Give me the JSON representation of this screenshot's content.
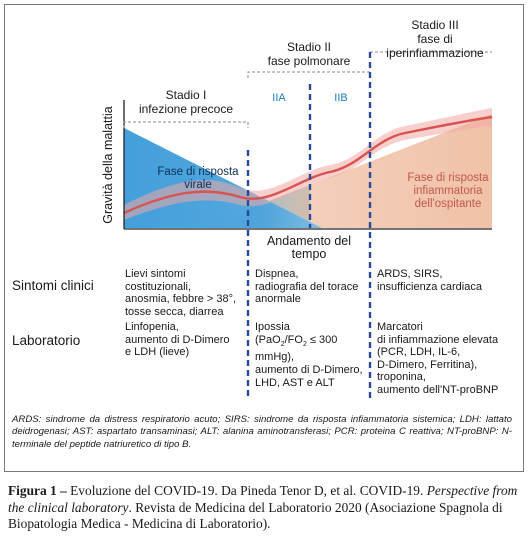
{
  "stages": {
    "stage1": {
      "line1": "Stadio I",
      "line2": "infezione precoce"
    },
    "stage2": {
      "line1": "Stadio II",
      "line2": "fase polmonare",
      "sub_a": "IIA",
      "sub_b": "IIB"
    },
    "stage3": {
      "line1": "Stadio III",
      "line2": "fase di iperinfiammazione"
    }
  },
  "chart": {
    "y_axis_label": "Gravità della malattia",
    "x_axis_label": "Andamento del tempo",
    "viral_phase": {
      "line1": "Fase di risposta",
      "line2": "virale"
    },
    "host_phase": {
      "line1": "Fase di risposta",
      "line2": "infiammatoria",
      "line3": "dell'ospitante"
    },
    "colors": {
      "viral": "#3a9ad9",
      "host": "#f2c9b3",
      "curve": "#d9534f",
      "divider": "#2a4a9a",
      "stage_label_blue": "#1a7fc0"
    }
  },
  "rows": {
    "symptoms": {
      "label": "Sintomi clinici",
      "col1": [
        "Lievi sintomi costituzionali,",
        "anosmia, febbre > 38°,",
        "tosse secca, diarrea"
      ],
      "col2": [
        "Dispnea,",
        "radiografia del torace",
        "anormale"
      ],
      "col3": [
        "ARDS, SIRS,",
        "insufficienza cardiaca"
      ]
    },
    "lab": {
      "label": "Laboratorio",
      "col1": [
        "Linfopenia,",
        "aumento di D-Dimero",
        "e LDH (lieve)"
      ],
      "col2_line1": "Ipossia",
      "col2_line2_pre": "(PaO",
      "col2_line2_sub1": "2",
      "col2_line2_mid": "/FO",
      "col2_line2_sub2": "2",
      "col2_line2_post": " ≤ 300 mmHg),",
      "col2_rest": [
        "aumento di D-Dimero,",
        "LHD, AST e ALT"
      ],
      "col3": [
        "Marcatori",
        "di infiammazione elevata",
        "(PCR, LDH, IL-6,",
        "D-Dimero, Ferritina),",
        "troponina,",
        "aumento dell'NT-proBNP"
      ]
    }
  },
  "abbreviations": "ARDS: sindrome da distress respiratorio acuto; SIRS: sindrome da risposta infiammatoria sistemica; LDH: lattato deidrogenasi; AST: aspartato transaminasi; ALT: alanina aminotransferasi; PCR: proteina C reattiva; NT-proBNP: N- terminale del peptide natriuretico di tipo B.",
  "caption": {
    "label": "Figura 1 –",
    "text1": " Evoluzione del COVID-19. Da Pineda Tenor D, et al. COVID-19. ",
    "italic": "Perspective from the clinical laboratory",
    "text2": ". Revista de Medicina del Laboratorio 2020 (Asociazione Spagnola di Biopatologia Medica - Medicina di Laboratorio)."
  }
}
